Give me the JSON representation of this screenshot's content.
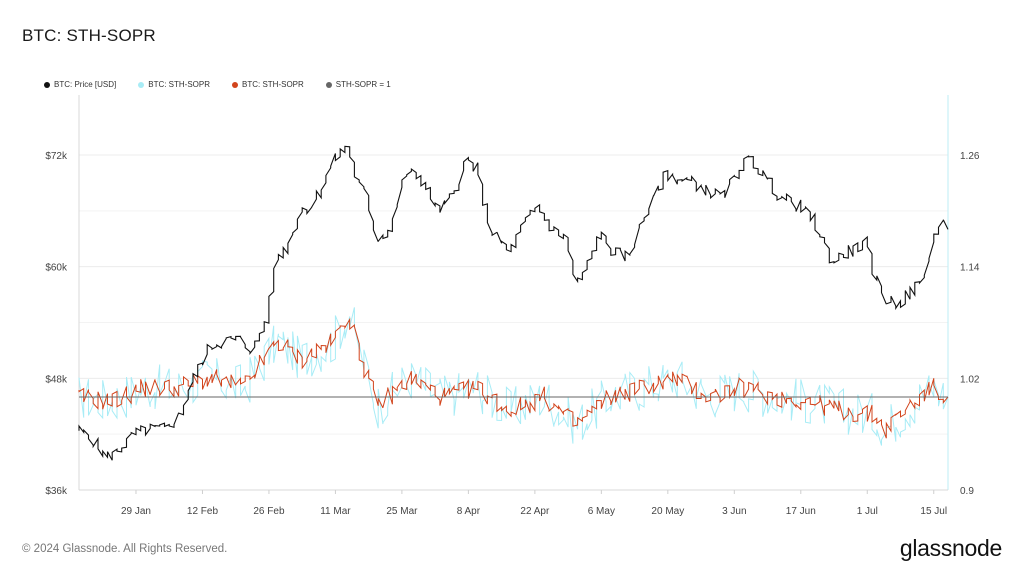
{
  "title": "BTC: STH-SOPR",
  "legend": [
    {
      "label": "BTC: Price [USD]",
      "color": "#111111"
    },
    {
      "label": "BTC: STH-SOPR",
      "color": "#a8ecf6"
    },
    {
      "label": "BTC: STH-SOPR",
      "color": "#d2441c"
    },
    {
      "label": "STH-SOPR = 1",
      "color": "#666666"
    }
  ],
  "footer": "© 2024 Glassnode. All Rights Reserved.",
  "brand": "glassnode",
  "chart_data": {
    "type": "line",
    "x_range": [
      "2024-01-17",
      "2024-07-18"
    ],
    "x_ticks": [
      "29 Jan",
      "12 Feb",
      "26 Feb",
      "11 Mar",
      "25 Mar",
      "8 Apr",
      "22 Apr",
      "6 May",
      "20 May",
      "3 Jun",
      "17 Jun",
      "1 Jul",
      "15 Jul"
    ],
    "y_left": {
      "label": "Price [USD]",
      "ticks": [
        "$36k",
        "$48k",
        "$60k",
        "$72k"
      ],
      "tick_values": [
        36000,
        48000,
        60000,
        72000
      ],
      "range": [
        36000,
        72000
      ]
    },
    "y_right": {
      "label": "STH-SOPR",
      "ticks": [
        "0.9",
        "1.02",
        "1.14",
        "1.26"
      ],
      "tick_values": [
        0.9,
        1.02,
        1.14,
        1.26
      ],
      "range": [
        0.9,
        1.26
      ]
    },
    "grid": true,
    "legend_position": "top-left",
    "series": [
      {
        "name": "BTC: Price [USD]",
        "axis": "left",
        "color": "#111111",
        "points": [
          [
            "2024-01-17",
            42500
          ],
          [
            "2024-01-20",
            41500
          ],
          [
            "2024-01-23",
            39500
          ],
          [
            "2024-01-25",
            40000
          ],
          [
            "2024-01-29",
            42000
          ],
          [
            "2024-02-01",
            42500
          ],
          [
            "2024-02-05",
            42600
          ],
          [
            "2024-02-08",
            44500
          ],
          [
            "2024-02-10",
            47500
          ],
          [
            "2024-02-12",
            49500
          ],
          [
            "2024-02-14",
            51500
          ],
          [
            "2024-02-17",
            52000
          ],
          [
            "2024-02-20",
            52200
          ],
          [
            "2024-02-23",
            51000
          ],
          [
            "2024-02-26",
            54500
          ],
          [
            "2024-02-28",
            61000
          ],
          [
            "2024-03-01",
            62000
          ],
          [
            "2024-03-04",
            66000
          ],
          [
            "2024-03-06",
            66500
          ],
          [
            "2024-03-08",
            68000
          ],
          [
            "2024-03-11",
            71500
          ],
          [
            "2024-03-14",
            73000
          ],
          [
            "2024-03-16",
            69000
          ],
          [
            "2024-03-18",
            67500
          ],
          [
            "2024-03-20",
            63000
          ],
          [
            "2024-03-23",
            64000
          ],
          [
            "2024-03-26",
            70000
          ],
          [
            "2024-03-29",
            69800
          ],
          [
            "2024-04-02",
            66000
          ],
          [
            "2024-04-05",
            67500
          ],
          [
            "2024-04-08",
            71500
          ],
          [
            "2024-04-10",
            70500
          ],
          [
            "2024-04-13",
            64000
          ],
          [
            "2024-04-17",
            61500
          ],
          [
            "2024-04-20",
            64500
          ],
          [
            "2024-04-23",
            66500
          ],
          [
            "2024-04-26",
            64000
          ],
          [
            "2024-04-29",
            63000
          ],
          [
            "2024-05-01",
            58000
          ],
          [
            "2024-05-03",
            59500
          ],
          [
            "2024-05-06",
            63500
          ],
          [
            "2024-05-09",
            61500
          ],
          [
            "2024-05-12",
            61000
          ],
          [
            "2024-05-15",
            65000
          ],
          [
            "2024-05-17",
            67000
          ],
          [
            "2024-05-20",
            70000
          ],
          [
            "2024-05-22",
            69500
          ],
          [
            "2024-05-26",
            69000
          ],
          [
            "2024-05-29",
            68000
          ],
          [
            "2024-06-01",
            67500
          ],
          [
            "2024-06-05",
            71000
          ],
          [
            "2024-06-07",
            71500
          ],
          [
            "2024-06-10",
            69500
          ],
          [
            "2024-06-13",
            67500
          ],
          [
            "2024-06-17",
            66500
          ],
          [
            "2024-06-20",
            65000
          ],
          [
            "2024-06-24",
            60500
          ],
          [
            "2024-06-27",
            61500
          ],
          [
            "2024-07-01",
            62500
          ],
          [
            "2024-07-03",
            59000
          ],
          [
            "2024-07-05",
            56500
          ],
          [
            "2024-07-08",
            56000
          ],
          [
            "2024-07-11",
            57500
          ],
          [
            "2024-07-13",
            58500
          ],
          [
            "2024-07-15",
            62500
          ],
          [
            "2024-07-17",
            65000
          ],
          [
            "2024-07-18",
            64000
          ]
        ]
      },
      {
        "name": "BTC: STH-SOPR",
        "axis": "right",
        "color": "#d2441c",
        "points": [
          [
            "2024-01-17",
            1.0
          ],
          [
            "2024-01-24",
            0.995
          ],
          [
            "2024-01-31",
            1.01
          ],
          [
            "2024-02-07",
            1.01
          ],
          [
            "2024-02-14",
            1.02
          ],
          [
            "2024-02-21",
            1.01
          ],
          [
            "2024-02-28",
            1.06
          ],
          [
            "2024-03-04",
            1.04
          ],
          [
            "2024-03-11",
            1.06
          ],
          [
            "2024-03-14",
            1.09
          ],
          [
            "2024-03-20",
            0.99
          ],
          [
            "2024-03-27",
            1.02
          ],
          [
            "2024-04-03",
            1.0
          ],
          [
            "2024-04-10",
            1.01
          ],
          [
            "2024-04-17",
            0.985
          ],
          [
            "2024-04-24",
            1.0
          ],
          [
            "2024-05-01",
            0.97
          ],
          [
            "2024-05-08",
            1.0
          ],
          [
            "2024-05-15",
            1.01
          ],
          [
            "2024-05-22",
            1.02
          ],
          [
            "2024-05-29",
            1.0
          ],
          [
            "2024-06-05",
            1.01
          ],
          [
            "2024-06-12",
            1.0
          ],
          [
            "2024-06-19",
            0.995
          ],
          [
            "2024-06-26",
            0.985
          ],
          [
            "2024-07-03",
            0.98
          ],
          [
            "2024-07-05",
            0.965
          ],
          [
            "2024-07-10",
            0.99
          ],
          [
            "2024-07-15",
            1.01
          ],
          [
            "2024-07-18",
            1.0
          ]
        ]
      },
      {
        "name": "STH-SOPR = 1",
        "axis": "right",
        "color": "#666666",
        "points": [
          [
            "2024-01-17",
            1.0
          ],
          [
            "2024-07-18",
            1.0
          ]
        ]
      }
    ]
  }
}
